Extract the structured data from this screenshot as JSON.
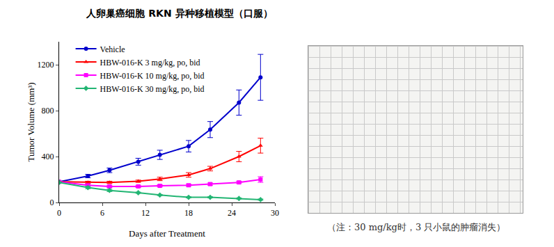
{
  "chart_data": {
    "type": "line",
    "title": "人卵巢癌细胞 RKN 异种移植模型（口服）",
    "x_label": "Days after Treatment",
    "y_label": "Tumor Volume (mm³)",
    "x": [
      0,
      4,
      7,
      11,
      14,
      18,
      21,
      25,
      28
    ],
    "series": [
      {
        "name": "Vehicle",
        "color": "#0000CC",
        "marker": "circle",
        "line_style": "solid",
        "values": [
          180,
          230,
          280,
          355,
          415,
          490,
          635,
          870,
          1090
        ],
        "error": [
          0,
          15,
          20,
          30,
          40,
          50,
          70,
          110,
          200
        ]
      },
      {
        "name": "HBW-016-K 3 mg/kg, po, bid",
        "color": "#FF0000",
        "marker": "triangle-up",
        "line_style": "solid",
        "values": [
          180,
          175,
          175,
          185,
          205,
          240,
          295,
          400,
          495
        ],
        "error": [
          0,
          10,
          10,
          10,
          15,
          20,
          20,
          45,
          65
        ]
      },
      {
        "name": "HBW-016-K 10 mg/kg, po, bid",
        "color": "#FF00FF",
        "marker": "square",
        "line_style": "solid",
        "values": [
          180,
          150,
          140,
          140,
          145,
          150,
          160,
          175,
          200
        ],
        "error": [
          0,
          10,
          10,
          10,
          10,
          10,
          10,
          10,
          25
        ]
      },
      {
        "name": "HBW-016-K 30 mg/kg, po, bid",
        "color": "#22B573",
        "marker": "diamond",
        "line_style": "solid",
        "values": [
          175,
          130,
          105,
          85,
          65,
          45,
          45,
          35,
          25
        ],
        "error": [
          0,
          10,
          10,
          5,
          5,
          5,
          5,
          5,
          5
        ]
      }
    ],
    "xlim": [
      0,
      30
    ],
    "xticks": [
      0,
      6,
      12,
      18,
      24,
      30
    ],
    "ylim": [
      0,
      1400
    ],
    "yticks": [
      0,
      400,
      800,
      1200
    ],
    "grid": false,
    "legend": "top left",
    "annotations": [
      "（注：30 mg/kg时，3 只小鼠的肿瘤消失）"
    ]
  }
}
